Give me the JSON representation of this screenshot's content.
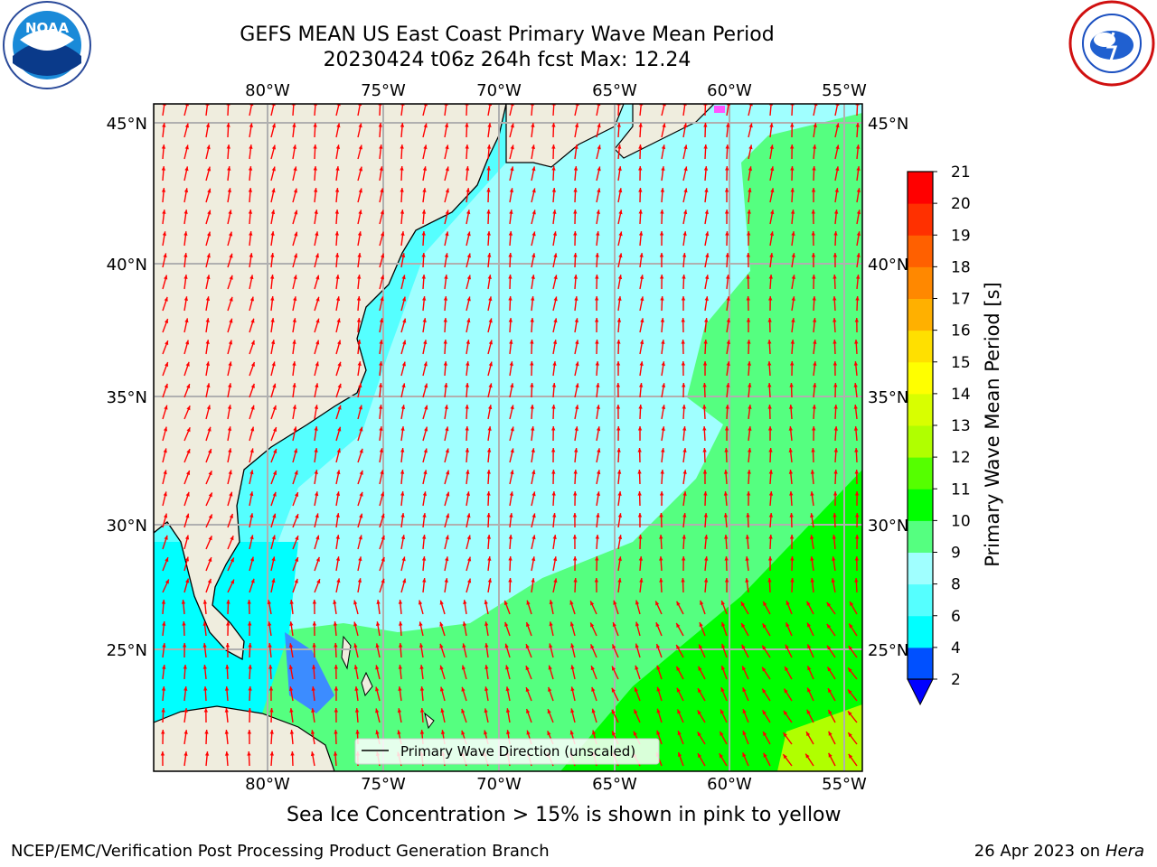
{
  "title": {
    "line1": "GEFS MEAN US East Coast Primary Wave Mean Period",
    "line2": "20230424 t06z 264h fcst   Max: 12.24"
  },
  "logos": {
    "left": "NOAA",
    "right": "NATIONAL WEATHER SERVICE"
  },
  "map": {
    "lon_ticks": [
      "80°W",
      "75°W",
      "70°W",
      "65°W",
      "60°W",
      "55°W"
    ],
    "lat_ticks": [
      "45°N",
      "40°N",
      "35°N",
      "30°N",
      "25°N"
    ],
    "legend_label": "Primary Wave Direction (unscaled)",
    "colors": {
      "land": "#efedde",
      "arrow": "#ff0000",
      "grid": "#b0b0b0"
    }
  },
  "colorbar": {
    "label": "Primary Wave Mean Period [s]",
    "ticks": [
      "2",
      "4",
      "6",
      "8",
      "9",
      "10",
      "11",
      "12",
      "13",
      "14",
      "15",
      "16",
      "17",
      "18",
      "19",
      "20",
      "21"
    ],
    "colors": [
      "#0050ff",
      "#00ffff",
      "#55ffff",
      "#a0ffff",
      "#55ff80",
      "#00ff00",
      "#55ff00",
      "#b0ff00",
      "#d8ff00",
      "#ffff00",
      "#ffe000",
      "#ffb000",
      "#ff8800",
      "#ff6000",
      "#ff3000",
      "#ff0000"
    ],
    "under_color": "#0000ff"
  },
  "subtitle": "Sea Ice Concentration > 15% is shown in pink to yellow",
  "footer": {
    "credit": "NCEP/EMC/Verification Post Processing Product Generation Branch",
    "date": "26 Apr 2023 on",
    "machine": "Hera"
  }
}
